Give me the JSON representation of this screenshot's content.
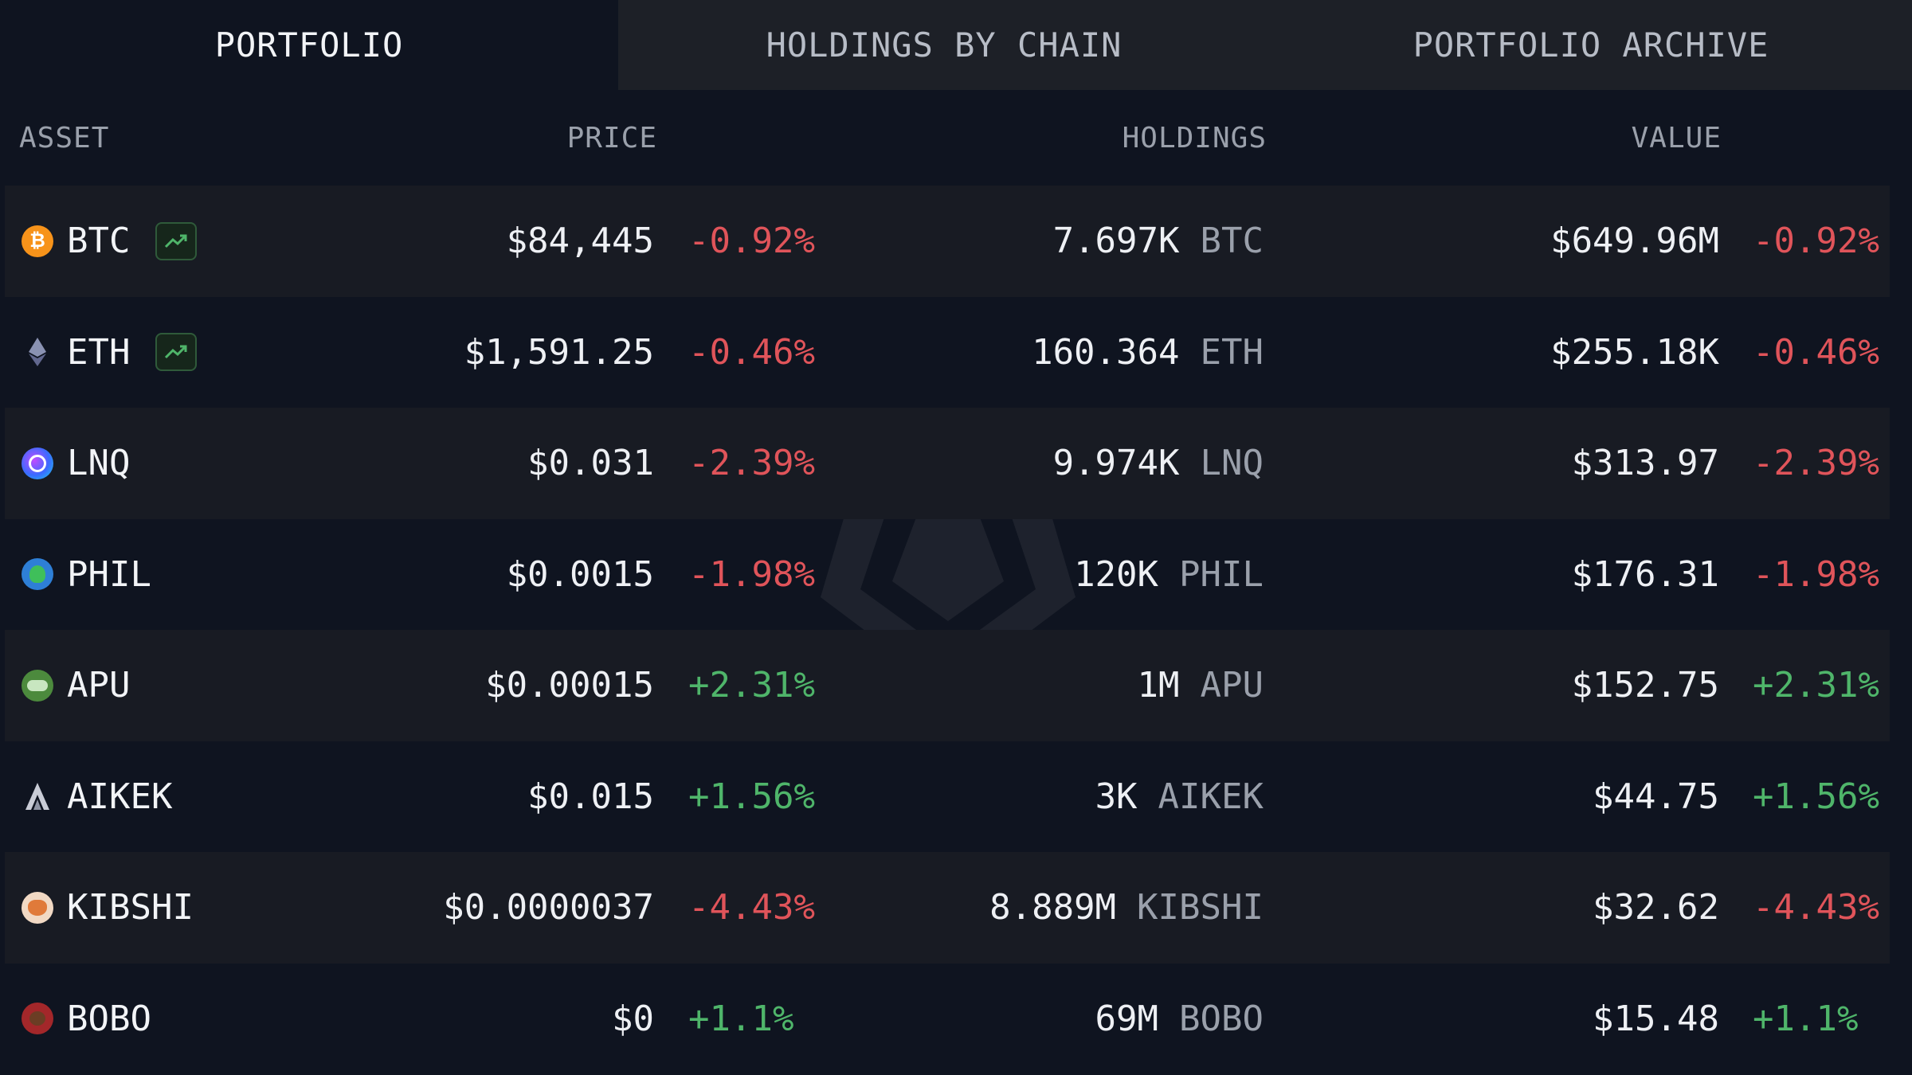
{
  "tabs": [
    {
      "label": "PORTFOLIO",
      "active": true
    },
    {
      "label": "HOLDINGS BY CHAIN",
      "active": false
    },
    {
      "label": "PORTFOLIO ARCHIVE",
      "active": false
    }
  ],
  "columns": {
    "asset": "ASSET",
    "price": "PRICE",
    "holdings": "HOLDINGS",
    "value": "VALUE"
  },
  "colors": {
    "background": "#0f1420",
    "negative": "#e0545a",
    "positive": "#4fb56a"
  },
  "rows": [
    {
      "symbol": "BTC",
      "icon": "bitcoin-icon",
      "trend": true,
      "price": "$84,445",
      "price_change": "-0.92%",
      "holdings_amount": "7.697K",
      "holdings_symbol": "BTC",
      "value": "$649.96M",
      "value_change": "-0.92%",
      "direction": "neg"
    },
    {
      "symbol": "ETH",
      "icon": "ethereum-icon",
      "trend": true,
      "price": "$1,591.25",
      "price_change": "-0.46%",
      "holdings_amount": "160.364",
      "holdings_symbol": "ETH",
      "value": "$255.18K",
      "value_change": "-0.46%",
      "direction": "neg"
    },
    {
      "symbol": "LNQ",
      "icon": "lnq-icon",
      "trend": false,
      "price": "$0.031",
      "price_change": "-2.39%",
      "holdings_amount": "9.974K",
      "holdings_symbol": "LNQ",
      "value": "$313.97",
      "value_change": "-2.39%",
      "direction": "neg"
    },
    {
      "symbol": "PHIL",
      "icon": "phil-icon",
      "trend": false,
      "price": "$0.0015",
      "price_change": "-1.98%",
      "holdings_amount": "120K",
      "holdings_symbol": "PHIL",
      "value": "$176.31",
      "value_change": "-1.98%",
      "direction": "neg"
    },
    {
      "symbol": "APU",
      "icon": "apu-icon",
      "trend": false,
      "price": "$0.00015",
      "price_change": "+2.31%",
      "holdings_amount": "1M",
      "holdings_symbol": "APU",
      "value": "$152.75",
      "value_change": "+2.31%",
      "direction": "pos"
    },
    {
      "symbol": "AIKEK",
      "icon": "aikek-icon",
      "trend": false,
      "price": "$0.015",
      "price_change": "+1.56%",
      "holdings_amount": "3K",
      "holdings_symbol": "AIKEK",
      "value": "$44.75",
      "value_change": "+1.56%",
      "direction": "pos"
    },
    {
      "symbol": "KIBSHI",
      "icon": "kibshi-icon",
      "trend": false,
      "price": "$0.0000037",
      "price_change": "-4.43%",
      "holdings_amount": "8.889M",
      "holdings_symbol": "KIBSHI",
      "value": "$32.62",
      "value_change": "-4.43%",
      "direction": "neg"
    },
    {
      "symbol": "BOBO",
      "icon": "bobo-icon",
      "trend": false,
      "price": "$0",
      "price_change": "+1.1%",
      "holdings_amount": "69M",
      "holdings_symbol": "BOBO",
      "value": "$15.48",
      "value_change": "+1.1%",
      "direction": "pos"
    }
  ]
}
